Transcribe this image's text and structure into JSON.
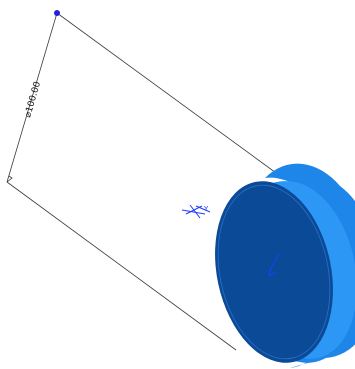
{
  "dimension": {
    "text": "⌀100.00"
  },
  "origin_label": "Y",
  "colors": {
    "background": "#ffffff",
    "disc_face": "#0a4a96",
    "disc_face_edge": "#2e6fc8",
    "disc_rim": "#1e86e8",
    "disc_rim_light": "#38a6ff",
    "leader_line": "#3a3a3a",
    "sketch_point": "#2222dd",
    "triad": "#1f3cff"
  },
  "icons": {
    "sketch_point": "sketch-point-icon",
    "origin_triad": "origin-triad-icon",
    "view_triad": "view-triad-icon"
  }
}
